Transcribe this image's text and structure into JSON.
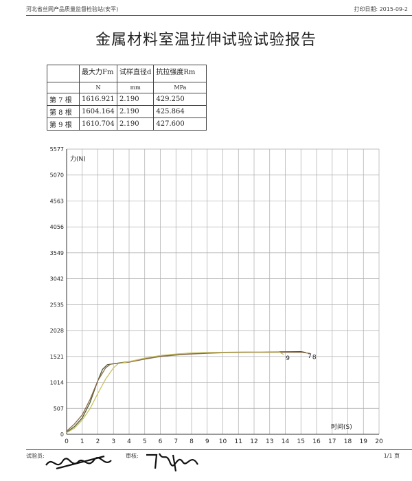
{
  "header": {
    "left": "河北省丝网产品质量监督检验站(安平)",
    "right": "打印日期: 2015-09-2"
  },
  "title": "金属材料室温拉伸试验试验报告",
  "table": {
    "columns": [
      "",
      "最大力Fm",
      "试样直径d",
      "抗拉强度Rm"
    ],
    "units": [
      "",
      "N",
      "mm",
      "MPa"
    ],
    "rows": [
      [
        "第 7 根",
        "1616.921",
        "2.190",
        "429.250"
      ],
      [
        "第 8 根",
        "1604.164",
        "2.190",
        "425.864"
      ],
      [
        "第 9 根",
        "1610.704",
        "2.190",
        "427.600"
      ]
    ]
  },
  "chart_data": {
    "type": "line",
    "xlabel": "时间(S)",
    "ylabel": "力(N)",
    "xlim": [
      0,
      20
    ],
    "ylim": [
      0,
      5577
    ],
    "x_ticks": [
      0,
      1,
      2,
      3,
      4,
      5,
      6,
      7,
      8,
      9,
      10,
      11,
      12,
      13,
      14,
      15,
      16,
      17,
      18,
      19,
      20
    ],
    "y_ticks": [
      0,
      507,
      1014,
      1521,
      2028,
      2535,
      3042,
      3549,
      4056,
      4563,
      5070,
      5577
    ],
    "grid": true,
    "series": [
      {
        "name": "7",
        "color": "#4a5a2a",
        "x": [
          0,
          0.5,
          1,
          1.5,
          2,
          2.3,
          2.6,
          3,
          4,
          5,
          6,
          7,
          8,
          9,
          10,
          11,
          12,
          13,
          14,
          15,
          15.3
        ],
        "y": [
          40,
          150,
          320,
          620,
          1050,
          1270,
          1360,
          1380,
          1420,
          1480,
          1530,
          1560,
          1580,
          1595,
          1600,
          1605,
          1610,
          1612,
          1614,
          1616,
          1600
        ]
      },
      {
        "name": "8",
        "color": "#8a6a4a",
        "x": [
          0,
          0.5,
          1,
          1.5,
          2,
          2.5,
          2.8,
          3,
          4,
          5,
          6,
          7,
          8,
          9,
          10,
          11,
          12,
          13,
          14,
          15,
          15.6
        ],
        "y": [
          60,
          200,
          380,
          680,
          1050,
          1300,
          1370,
          1380,
          1410,
          1470,
          1520,
          1550,
          1570,
          1585,
          1595,
          1598,
          1600,
          1602,
          1603,
          1604,
          1580
        ]
      },
      {
        "name": "9",
        "color": "#c8c060",
        "x": [
          0,
          0.5,
          1,
          1.5,
          2,
          2.5,
          3,
          3.3,
          4,
          5,
          6,
          7,
          8,
          9,
          10,
          11,
          12,
          13,
          13.6,
          13.9
        ],
        "y": [
          30,
          120,
          280,
          500,
          800,
          1080,
          1300,
          1380,
          1420,
          1490,
          1540,
          1570,
          1590,
          1600,
          1605,
          1608,
          1610,
          1610,
          1610,
          1560
        ]
      }
    ]
  }
}
